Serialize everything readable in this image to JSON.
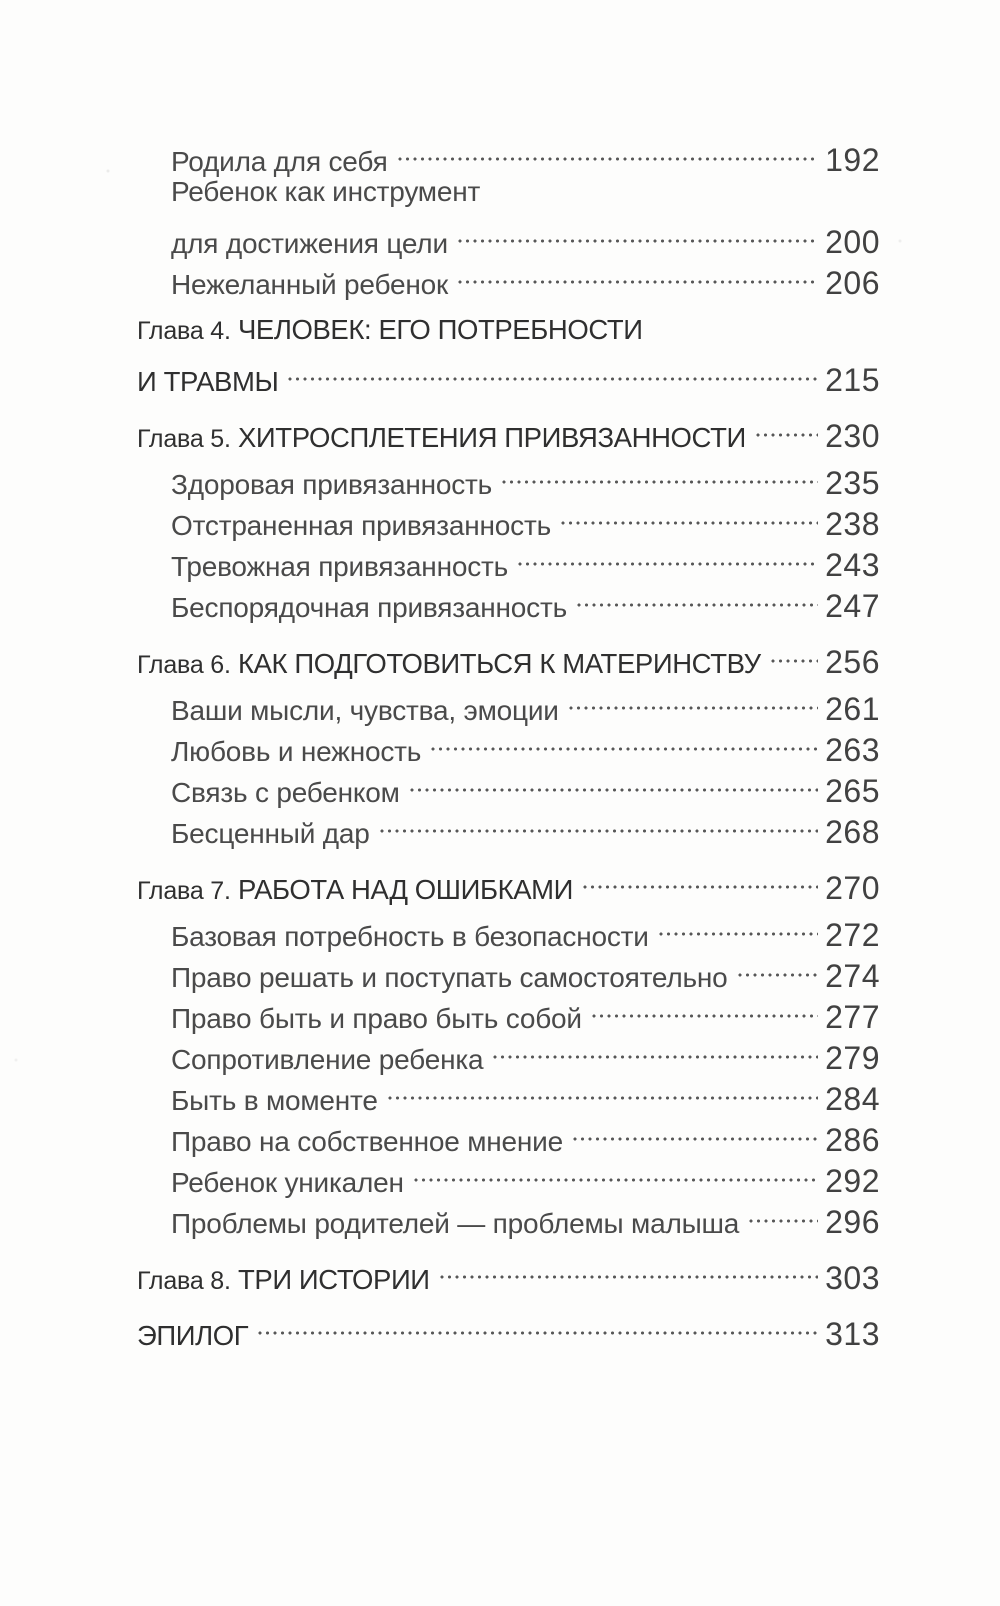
{
  "page": {
    "background_color": "#fdfdfc",
    "text_color": "#3d3d3d",
    "language": "ru",
    "kind": "book-table-of-contents"
  },
  "toc": {
    "entries": [
      {
        "kind": "sub",
        "lines": [
          {
            "text": "Родила для себя",
            "page": "192"
          }
        ]
      },
      {
        "kind": "sub",
        "lines": [
          {
            "text": "Ребенок как инструмент"
          },
          {
            "text": "для достижения цели",
            "page": "200"
          }
        ]
      },
      {
        "kind": "sub",
        "lines": [
          {
            "text": "Нежеланный ребенок",
            "page": "206"
          }
        ]
      },
      {
        "kind": "chapter",
        "prefix": "Глава 4.",
        "lines": [
          {
            "text": "ЧЕЛОВЕК: ЕГО ПОТРЕБНОСТИ"
          },
          {
            "text": "И ТРАВМЫ",
            "page": "215"
          }
        ]
      },
      {
        "kind": "chapter",
        "prefix": "Глава 5.",
        "lines": [
          {
            "text": "ХИТРОСПЛЕТЕНИЯ ПРИВЯЗАННОСТИ",
            "page": "230"
          }
        ]
      },
      {
        "kind": "sub",
        "lines": [
          {
            "text": "Здоровая привязанность",
            "page": "235"
          }
        ]
      },
      {
        "kind": "sub",
        "lines": [
          {
            "text": "Отстраненная привязанность",
            "page": "238"
          }
        ]
      },
      {
        "kind": "sub",
        "lines": [
          {
            "text": "Тревожная привязанность",
            "page": "243"
          }
        ]
      },
      {
        "kind": "sub",
        "lines": [
          {
            "text": "Беспорядочная привязанность",
            "page": "247"
          }
        ]
      },
      {
        "kind": "chapter",
        "prefix": "Глава 6.",
        "lines": [
          {
            "text": "КАК ПОДГОТОВИТЬСЯ К МАТЕРИНСТВУ",
            "page": "256"
          }
        ]
      },
      {
        "kind": "sub",
        "lines": [
          {
            "text": "Ваши мысли, чувства, эмоции",
            "page": "261"
          }
        ]
      },
      {
        "kind": "sub",
        "lines": [
          {
            "text": "Любовь и нежность",
            "page": "263"
          }
        ]
      },
      {
        "kind": "sub",
        "lines": [
          {
            "text": "Связь с ребенком",
            "page": "265"
          }
        ]
      },
      {
        "kind": "sub",
        "lines": [
          {
            "text": "Бесценный дар",
            "page": "268"
          }
        ]
      },
      {
        "kind": "chapter",
        "prefix": "Глава 7.",
        "lines": [
          {
            "text": "РАБОТА НАД ОШИБКАМИ",
            "page": "270"
          }
        ]
      },
      {
        "kind": "sub",
        "lines": [
          {
            "text": "Базовая потребность в безопасности",
            "page": "272"
          }
        ]
      },
      {
        "kind": "sub",
        "lines": [
          {
            "text": "Право решать и поступать самостоятельно",
            "page": "274"
          }
        ]
      },
      {
        "kind": "sub",
        "lines": [
          {
            "text": "Право быть и право быть собой",
            "page": "277"
          }
        ]
      },
      {
        "kind": "sub",
        "lines": [
          {
            "text": "Сопротивление ребенка",
            "page": "279"
          }
        ]
      },
      {
        "kind": "sub",
        "lines": [
          {
            "text": "Быть в моменте",
            "page": "284"
          }
        ]
      },
      {
        "kind": "sub",
        "lines": [
          {
            "text": "Право на собственное мнение",
            "page": "286"
          }
        ]
      },
      {
        "kind": "sub",
        "lines": [
          {
            "text": "Ребенок уникален",
            "page": "292"
          }
        ]
      },
      {
        "kind": "sub",
        "lines": [
          {
            "text": "Проблемы родителей — проблемы малыша",
            "page": "296"
          }
        ]
      },
      {
        "kind": "chapter",
        "prefix": "Глава 8.",
        "lines": [
          {
            "text": "ТРИ ИСТОРИИ",
            "page": "303"
          }
        ]
      },
      {
        "kind": "chapter",
        "lines": [
          {
            "text": "ЭПИЛОГ",
            "page": "313"
          }
        ]
      }
    ]
  }
}
